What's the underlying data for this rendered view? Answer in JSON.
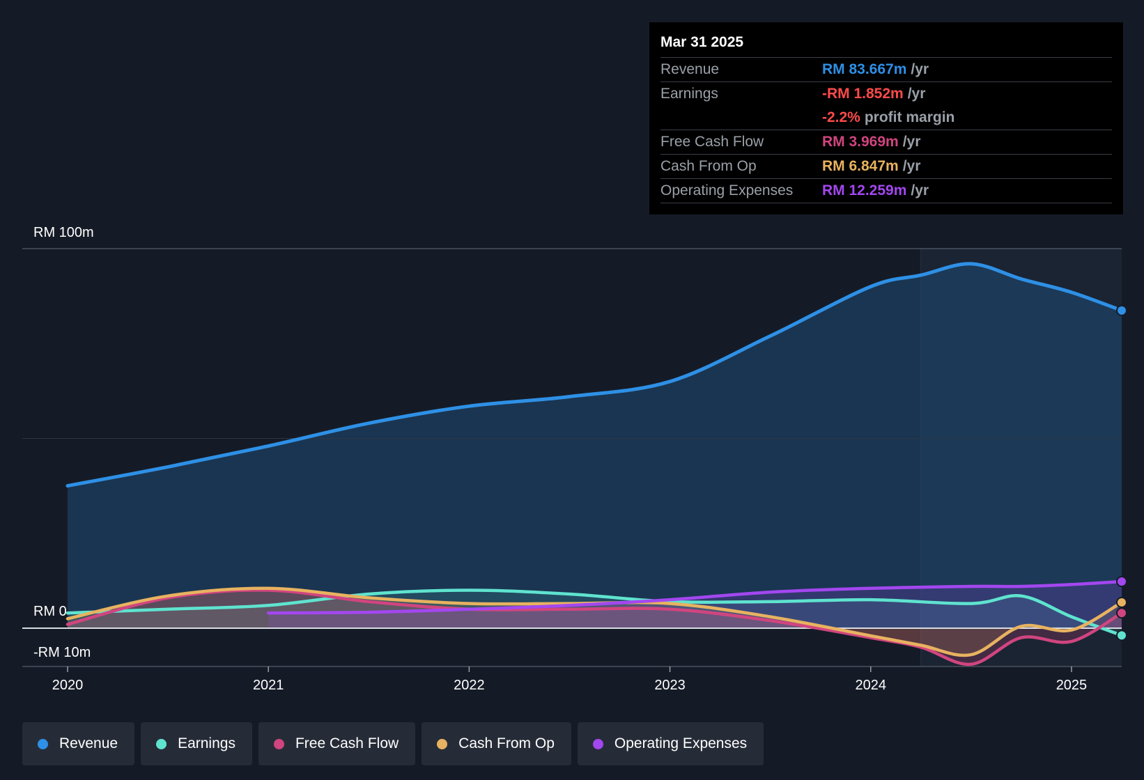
{
  "tooltip": {
    "date": "Mar 31 2025",
    "rows": [
      {
        "label": "Revenue",
        "value": "RM 83.667m",
        "unit": "/yr",
        "color": "#2e90e6"
      },
      {
        "label": "Earnings",
        "value": "-RM 1.852m",
        "unit": "/yr",
        "color": "#ff4a4a"
      },
      {
        "label": "",
        "value": "-2.2%",
        "unit": "profit margin",
        "color": "#ff4a4a"
      },
      {
        "label": "Free Cash Flow",
        "value": "RM 3.969m",
        "unit": "/yr",
        "color": "#d0457f"
      },
      {
        "label": "Cash From Op",
        "value": "RM 6.847m",
        "unit": "/yr",
        "color": "#e8b260"
      },
      {
        "label": "Operating Expenses",
        "value": "RM 12.259m",
        "unit": "/yr",
        "color": "#a347f0"
      }
    ]
  },
  "legend": [
    {
      "label": "Revenue",
      "color": "#2e90e6"
    },
    {
      "label": "Earnings",
      "color": "#5fe3cf"
    },
    {
      "label": "Free Cash Flow",
      "color": "#d0457f"
    },
    {
      "label": "Cash From Op",
      "color": "#e8b260"
    },
    {
      "label": "Operating Expenses",
      "color": "#a347f0"
    }
  ],
  "chart_data": {
    "type": "area",
    "title": "",
    "y_tick_labels": [
      "RM 100m",
      "RM 0",
      "-RM 10m"
    ],
    "ylim": [
      -10,
      100
    ],
    "xlim": [
      2020,
      2025.25
    ],
    "x_ticks": [
      2020,
      2021,
      2022,
      2023,
      2024,
      2025
    ],
    "x_tick_labels": [
      "2020",
      "2021",
      "2022",
      "2023",
      "2024",
      "2025"
    ],
    "highlight_from": 2024.25,
    "series": [
      {
        "name": "Revenue",
        "color": "#2e90e6",
        "fill": true,
        "x": [
          2020,
          2020.5,
          2021,
          2021.5,
          2022,
          2022.5,
          2023,
          2023.5,
          2024,
          2024.25,
          2024.5,
          2024.75,
          2025,
          2025.25
        ],
        "y": [
          37.5,
          42.5,
          48,
          54,
          58.5,
          61,
          65,
          77,
          90,
          93,
          96,
          92,
          88.5,
          83.7
        ]
      },
      {
        "name": "Earnings",
        "color": "#5fe3cf",
        "fill": false,
        "x": [
          2020,
          2020.5,
          2021,
          2021.5,
          2022,
          2022.5,
          2023,
          2023.5,
          2024,
          2024.5,
          2024.75,
          2025,
          2025.25
        ],
        "y": [
          4,
          5,
          6,
          9,
          10,
          9,
          7,
          7,
          7.5,
          6.5,
          8.5,
          3,
          -1.9
        ]
      },
      {
        "name": "Free Cash Flow",
        "color": "#d0457f",
        "fill": false,
        "x": [
          2020,
          2020.5,
          2021,
          2021.5,
          2022,
          2022.5,
          2023,
          2023.5,
          2024,
          2024.25,
          2024.5,
          2024.75,
          2025,
          2025.25
        ],
        "y": [
          1,
          8,
          10,
          7,
          5,
          5,
          5,
          2,
          -2.5,
          -5,
          -9.5,
          -2.5,
          -3.5,
          4.0
        ]
      },
      {
        "name": "Cash From Op",
        "color": "#e8b260",
        "fill": false,
        "x": [
          2020,
          2020.5,
          2021,
          2021.5,
          2022,
          2022.5,
          2023,
          2023.5,
          2024,
          2024.25,
          2024.5,
          2024.75,
          2025,
          2025.25
        ],
        "y": [
          2.5,
          8.5,
          10.5,
          8,
          6.5,
          6.5,
          6.5,
          3,
          -2,
          -4.5,
          -7,
          0.5,
          -0.5,
          6.8
        ]
      },
      {
        "name": "Operating Expenses",
        "color": "#a347f0",
        "fill": false,
        "x": [
          2021,
          2021.5,
          2022,
          2022.5,
          2023,
          2023.5,
          2024,
          2024.5,
          2024.75,
          2025,
          2025.25
        ],
        "y": [
          4,
          4.2,
          5,
          6,
          7.5,
          9.5,
          10.5,
          11,
          11,
          11.5,
          12.3
        ]
      }
    ]
  }
}
